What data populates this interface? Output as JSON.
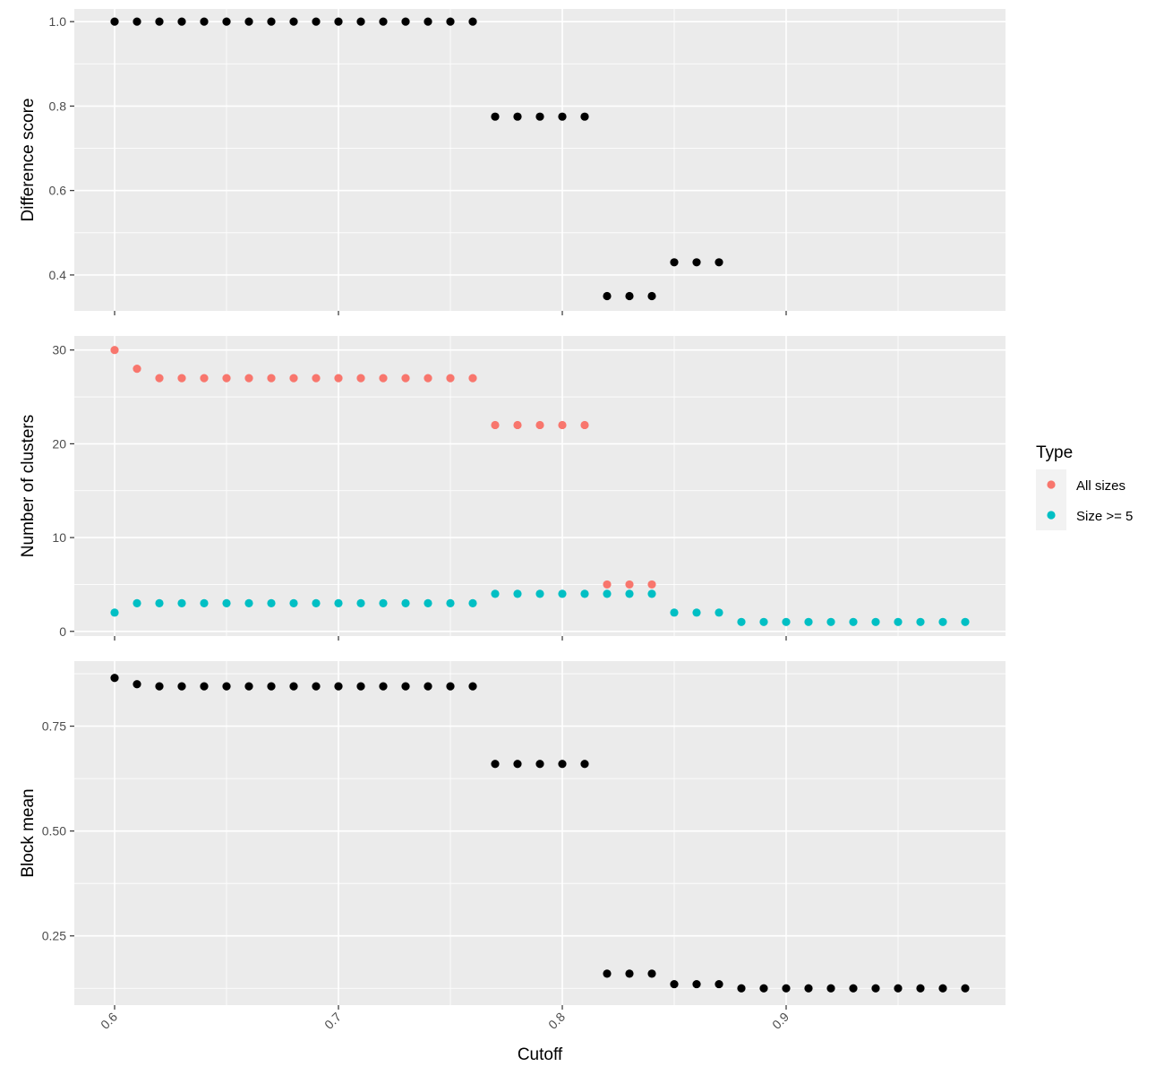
{
  "chart_data": {
    "type": "scatter",
    "xlabel": "Cutoff",
    "x_ticks": [
      0.6,
      0.7,
      0.8,
      0.9
    ],
    "xlim": [
      0.582,
      0.998
    ],
    "legend": {
      "title": "Type",
      "position": "right",
      "entries": [
        {
          "name": "All sizes",
          "color": "#F8766D"
        },
        {
          "name": "Size >= 5",
          "color": "#00BFC4"
        }
      ]
    },
    "panels": [
      {
        "ylabel": "Difference score",
        "ylim": [
          0.315,
          1.03
        ],
        "y_ticks": [
          0.4,
          0.6,
          0.8,
          1.0
        ],
        "y_tick_labels": [
          "0.4",
          "0.6",
          "0.8",
          "1.0"
        ],
        "series": [
          {
            "color": "#000000",
            "x": [
              0.6,
              0.61,
              0.62,
              0.63,
              0.64,
              0.65,
              0.66,
              0.67,
              0.68,
              0.69,
              0.7,
              0.71,
              0.72,
              0.73,
              0.74,
              0.75,
              0.76,
              0.77,
              0.78,
              0.79,
              0.8,
              0.81,
              0.82,
              0.83,
              0.84,
              0.85,
              0.86,
              0.87
            ],
            "y": [
              1,
              1,
              1,
              1,
              1,
              1,
              1,
              1,
              1,
              1,
              1,
              1,
              1,
              1,
              1,
              1,
              1,
              0.775,
              0.775,
              0.775,
              0.775,
              0.775,
              0.35,
              0.35,
              0.35,
              0.43,
              0.43,
              0.43
            ]
          }
        ]
      },
      {
        "ylabel": "Number of clusters",
        "ylim": [
          -0.5,
          31.5
        ],
        "y_ticks": [
          0,
          10,
          20,
          30
        ],
        "y_tick_labels": [
          "0",
          "10",
          "20",
          "30"
        ],
        "series": [
          {
            "name": "All sizes",
            "color": "#F8766D",
            "x": [
              0.6,
              0.61,
              0.62,
              0.63,
              0.64,
              0.65,
              0.66,
              0.67,
              0.68,
              0.69,
              0.7,
              0.71,
              0.72,
              0.73,
              0.74,
              0.75,
              0.76,
              0.77,
              0.78,
              0.79,
              0.8,
              0.81,
              0.82,
              0.83,
              0.84
            ],
            "y": [
              30,
              28,
              27,
              27,
              27,
              27,
              27,
              27,
              27,
              27,
              27,
              27,
              27,
              27,
              27,
              27,
              27,
              22,
              22,
              22,
              22,
              22,
              5,
              5,
              5
            ]
          },
          {
            "name": "Size >= 5",
            "color": "#00BFC4",
            "x": [
              0.6,
              0.61,
              0.62,
              0.63,
              0.64,
              0.65,
              0.66,
              0.67,
              0.68,
              0.69,
              0.7,
              0.71,
              0.72,
              0.73,
              0.74,
              0.75,
              0.76,
              0.77,
              0.78,
              0.79,
              0.8,
              0.81,
              0.82,
              0.83,
              0.84,
              0.85,
              0.86,
              0.87,
              0.88,
              0.89,
              0.9,
              0.91,
              0.92,
              0.93,
              0.94,
              0.95,
              0.96,
              0.97,
              0.98
            ],
            "y": [
              2,
              3,
              3,
              3,
              3,
              3,
              3,
              3,
              3,
              3,
              3,
              3,
              3,
              3,
              3,
              3,
              3,
              4,
              4,
              4,
              4,
              4,
              4,
              4,
              4,
              2,
              2,
              2,
              1,
              1,
              1,
              1,
              1,
              1,
              1,
              1,
              1,
              1,
              1
            ]
          }
        ]
      },
      {
        "ylabel": "Block mean",
        "ylim": [
          0.085,
          0.905
        ],
        "y_ticks": [
          0.25,
          0.5,
          0.75
        ],
        "y_tick_labels": [
          "0.25",
          "0.50",
          "0.75"
        ],
        "series": [
          {
            "color": "#000000",
            "x": [
              0.6,
              0.61,
              0.62,
              0.63,
              0.64,
              0.65,
              0.66,
              0.67,
              0.68,
              0.69,
              0.7,
              0.71,
              0.72,
              0.73,
              0.74,
              0.75,
              0.76,
              0.77,
              0.78,
              0.79,
              0.8,
              0.81,
              0.82,
              0.83,
              0.84,
              0.85,
              0.86,
              0.87,
              0.88,
              0.89,
              0.9,
              0.91,
              0.92,
              0.93,
              0.94,
              0.95,
              0.96,
              0.97,
              0.98
            ],
            "y": [
              0.865,
              0.85,
              0.845,
              0.845,
              0.845,
              0.845,
              0.845,
              0.845,
              0.845,
              0.845,
              0.845,
              0.845,
              0.845,
              0.845,
              0.845,
              0.845,
              0.845,
              0.66,
              0.66,
              0.66,
              0.66,
              0.66,
              0.16,
              0.16,
              0.16,
              0.135,
              0.135,
              0.135,
              0.125,
              0.125,
              0.125,
              0.125,
              0.125,
              0.125,
              0.125,
              0.125,
              0.125,
              0.125,
              0.125
            ]
          }
        ]
      }
    ]
  }
}
